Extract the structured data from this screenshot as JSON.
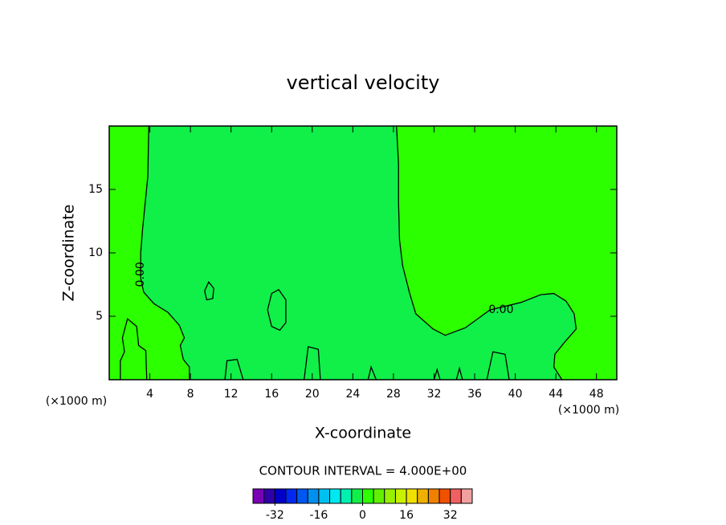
{
  "chart_data": {
    "type": "contour",
    "title": "vertical velocity",
    "x_label": "X-coordinate",
    "y_label": "Z-coordinate",
    "x_unit": "(×1000 m)",
    "y_unit": "(×1000 m)",
    "xlim": [
      0,
      50
    ],
    "ylim": [
      0,
      20
    ],
    "xticks": [
      4,
      8,
      12,
      16,
      20,
      24,
      28,
      32,
      36,
      40,
      44,
      48
    ],
    "yticks": [
      5,
      10,
      15
    ],
    "contour_interval_label": "CONTOUR INTERVAL = 4.000E+00",
    "contours": [
      {
        "level": 0,
        "x": [
          3.9,
          3.8,
          3.3,
          3.1,
          3.1,
          3.4,
          4.4,
          5.8,
          6.9,
          7.4,
          7.0,
          7.3,
          7.9,
          7.9,
          null,
          44.6,
          43.8,
          43.9,
          44.8,
          46.0,
          45.8,
          45.0,
          43.8,
          42.5,
          40.6,
          37.5,
          35.1,
          33.1,
          31.9,
          30.2,
          29.6,
          28.9,
          28.6,
          28.5,
          28.5,
          28.3
        ],
        "y": [
          20,
          16,
          12,
          10,
          8,
          6.9,
          6.0,
          5.3,
          4.3,
          3.3,
          2.7,
          1.6,
          1.0,
          0,
          null,
          0,
          1.0,
          2.0,
          2.9,
          4.0,
          5.2,
          6.2,
          6.8,
          6.7,
          6.1,
          5.5,
          4.1,
          3.5,
          4.0,
          5.2,
          6.8,
          9.0,
          11,
          14,
          17,
          20
        ]
      },
      {
        "level": 0,
        "x": [
          9.4,
          9.8,
          10.3,
          10.2,
          9.6,
          9.4,
          null,
          15.6,
          16.0,
          16.7,
          17.4,
          17.4,
          16.8,
          16.0,
          15.6,
          null,
          1.1,
          1.1,
          1.5,
          1.3,
          1.8,
          2.7,
          2.9,
          3.6,
          3.7,
          null,
          11.4,
          11.6,
          12.6,
          13.2,
          null,
          19.2,
          19.6,
          20.6,
          20.8,
          null,
          25.5,
          25.8,
          26.3,
          null,
          32.0,
          32.3,
          32.6,
          null,
          34.2,
          34.5,
          34.8,
          null,
          37.2,
          37.8,
          39.0,
          39.4
        ],
        "y": [
          7.0,
          7.7,
          7.2,
          6.4,
          6.3,
          7.0,
          null,
          5.5,
          6.8,
          7.1,
          6.3,
          4.5,
          3.9,
          4.2,
          5.5,
          null,
          0,
          1.5,
          2.2,
          3.3,
          4.8,
          4.2,
          2.7,
          2.3,
          0,
          null,
          0,
          1.5,
          1.6,
          0,
          null,
          0,
          2.6,
          2.4,
          0,
          null,
          0,
          1.0,
          0,
          null,
          0,
          0.8,
          0,
          null,
          0,
          0.9,
          0,
          null,
          0,
          2.2,
          2.0,
          0
        ]
      }
    ],
    "contour_labels": [
      {
        "text": "0.00",
        "x": 3.1,
        "y": 8.3,
        "angle": -90
      },
      {
        "text": "0.00",
        "x": 38.6,
        "y": 5.5,
        "angle": 0
      }
    ],
    "colorbar": {
      "lim": [
        -40,
        40
      ],
      "ticks": [
        -32,
        -16,
        0,
        16,
        32
      ],
      "colors": [
        "#7a00b4",
        "#3000a8",
        "#0000c8",
        "#0028f0",
        "#0058f0",
        "#0090f0",
        "#00c0f0",
        "#00e8f0",
        "#00f0b0",
        "#10f048",
        "#2cff00",
        "#60f000",
        "#98f000",
        "#c8f000",
        "#f0e000",
        "#f0b000",
        "#f08000",
        "#f05000",
        "#f06060",
        "#f0a0a0"
      ]
    }
  }
}
